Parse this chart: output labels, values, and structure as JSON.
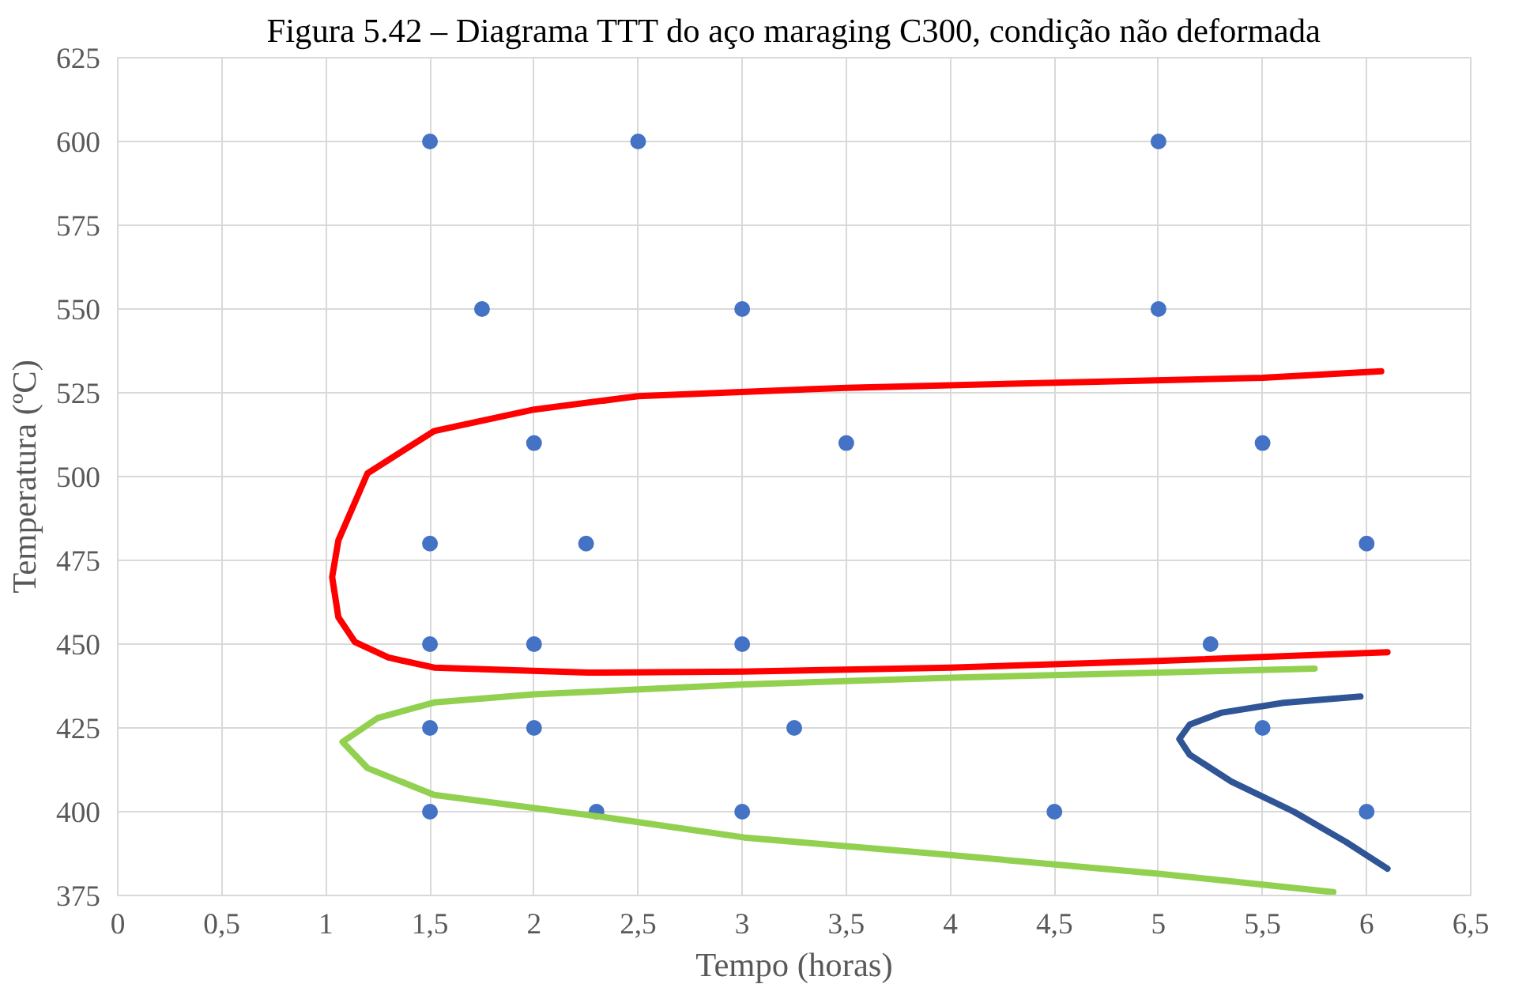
{
  "chart_data": {
    "type": "scatter",
    "title": "Figura 5.42 – Diagrama TTT do aço maraging C300, condição não deformada",
    "xlabel": "Tempo (horas)",
    "ylabel": "Temperatura (ºC)",
    "xlim": [
      0,
      6.5
    ],
    "ylim": [
      375,
      625
    ],
    "xticks": [
      {
        "value": 0,
        "label": "0"
      },
      {
        "value": 0.5,
        "label": "0,5"
      },
      {
        "value": 1,
        "label": "1"
      },
      {
        "value": 1.5,
        "label": "1,5"
      },
      {
        "value": 2,
        "label": "2"
      },
      {
        "value": 2.5,
        "label": "2,5"
      },
      {
        "value": 3,
        "label": "3"
      },
      {
        "value": 3.5,
        "label": "3,5"
      },
      {
        "value": 4,
        "label": "4"
      },
      {
        "value": 4.5,
        "label": "4,5"
      },
      {
        "value": 5,
        "label": "5"
      },
      {
        "value": 5.5,
        "label": "5,5"
      },
      {
        "value": 6,
        "label": "6"
      },
      {
        "value": 6.5,
        "label": "6,5"
      }
    ],
    "yticks": [
      375,
      400,
      425,
      450,
      475,
      500,
      525,
      550,
      575,
      600,
      625
    ],
    "grid": true,
    "series": [
      {
        "marker": "circle",
        "color": "#4472c4",
        "x": [
          1.5,
          2.5,
          5,
          1.75,
          3,
          5,
          2,
          3.5,
          5.5,
          1.5,
          2.25,
          6,
          1.5,
          2,
          3,
          5.25,
          1.5,
          2,
          3.25,
          5.5,
          1.5,
          2.3,
          3,
          4.5,
          6
        ],
        "values": [
          600,
          600,
          600,
          550,
          550,
          550,
          510,
          510,
          510,
          480,
          480,
          480,
          450,
          450,
          450,
          450,
          425,
          425,
          425,
          425,
          400,
          400,
          400,
          400,
          400
        ]
      },
      {
        "type": "line",
        "marker": "none",
        "color": "#ff0000",
        "x": [
          6.07,
          5.5,
          4.5,
          3.5,
          2.5,
          2.0,
          1.52,
          1.2,
          1.06,
          1.03,
          1.06,
          1.14,
          1.3,
          1.52,
          2.26,
          3.0,
          4.0,
          5.0,
          6.1
        ],
        "values": [
          531.4,
          529.5,
          528,
          526.5,
          524,
          520,
          513.6,
          501,
          481,
          470,
          458,
          450.6,
          446,
          443,
          441.5,
          441.8,
          443,
          445,
          447.6
        ]
      },
      {
        "type": "line",
        "marker": "none",
        "color": "#92d050",
        "x": [
          5.75,
          5.0,
          4.0,
          3.01,
          2.0,
          1.52,
          1.25,
          1.08,
          1.2,
          1.52,
          2.32,
          3.01,
          3.92,
          5.0,
          5.84
        ],
        "values": [
          442.7,
          441.5,
          440,
          438,
          435,
          432.6,
          428,
          420.8,
          413,
          405,
          398.5,
          392.3,
          387.5,
          381.5,
          376
        ]
      },
      {
        "type": "line",
        "marker": "none",
        "color": "#2f5597",
        "x": [
          5.97,
          5.6,
          5.3,
          5.15,
          5.1,
          5.15,
          5.35,
          5.65,
          5.9,
          6.1
        ],
        "values": [
          434.4,
          432.5,
          429.5,
          426,
          421.7,
          417,
          409,
          400,
          391,
          383
        ]
      }
    ]
  }
}
